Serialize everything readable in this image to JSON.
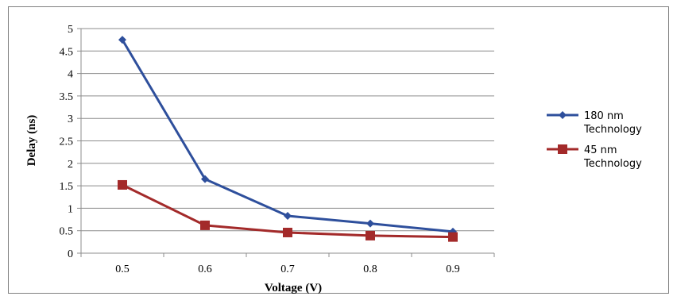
{
  "chart_data": {
    "type": "line",
    "title": "",
    "xlabel": "Voltage (V)",
    "ylabel": "Delay (ns)",
    "categories": [
      "0.5",
      "0.6",
      "0.7",
      "0.8",
      "0.9"
    ],
    "ylim": [
      0,
      5
    ],
    "yticks": [
      "0",
      "0.5",
      "1",
      "1.5",
      "2",
      "2.5",
      "3",
      "3.5",
      "4",
      "4.5",
      "5"
    ],
    "grid": "horizontal",
    "legend_position": "right",
    "series": [
      {
        "name": "180 nm Technology",
        "legend_lines": [
          "180 nm",
          "Technology"
        ],
        "color": "#2e4f9c",
        "marker": "diamond",
        "values": [
          4.75,
          1.65,
          0.83,
          0.66,
          0.48
        ]
      },
      {
        "name": "45 nm Technology",
        "legend_lines": [
          "45 nm",
          "Technology"
        ],
        "color": "#a32a2a",
        "marker": "square",
        "values": [
          1.52,
          0.62,
          0.46,
          0.39,
          0.36
        ]
      }
    ]
  }
}
